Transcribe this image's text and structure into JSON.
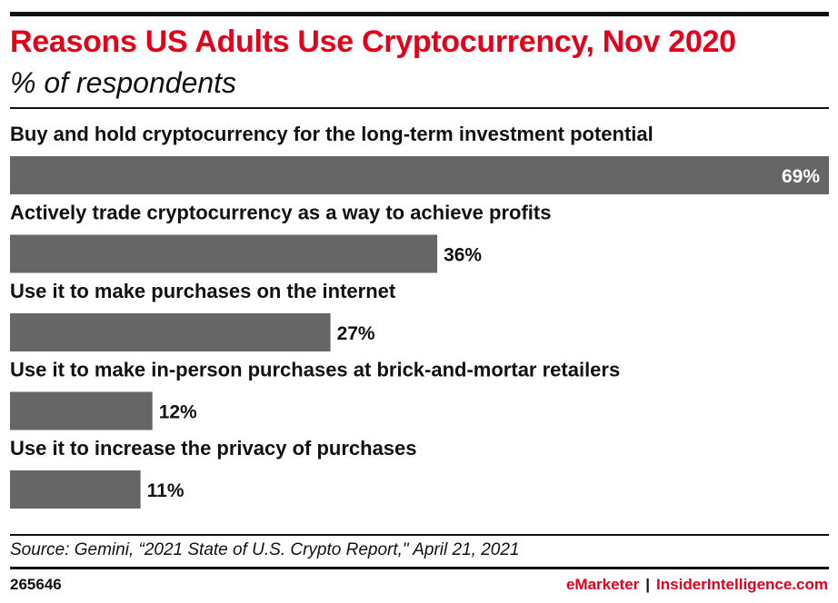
{
  "colors": {
    "title": "#e3001b",
    "bar": "#666666",
    "text": "#111111",
    "inside_label": "#ffffff",
    "brand": "#e3001b"
  },
  "header": {
    "title": "Reasons US Adults Use Cryptocurrency, Nov 2020",
    "subtitle": "% of respondents"
  },
  "chart_data": {
    "type": "bar",
    "orientation": "horizontal",
    "title": "Reasons US Adults Use Cryptocurrency, Nov 2020",
    "subtitle": "% of respondents",
    "categories": [
      "Buy and hold cryptocurrency for the long-term investment potential",
      "Actively trade cryptocurrency as a way to achieve profits",
      "Use it to make purchases on the internet",
      "Use it to make in-person purchases at brick-and-mortar retailers",
      "Use it to increase the privacy of purchases"
    ],
    "values": [
      69,
      36,
      27,
      12,
      11
    ],
    "value_labels": [
      "69%",
      "36%",
      "27%",
      "12%",
      "11%"
    ],
    "unit": "%",
    "xlim": [
      0,
      69
    ],
    "grid": false,
    "legend": "none"
  },
  "footer": {
    "source": "Source: Gemini, “2021 State of U.S. Crypto Report,\" April 21, 2021",
    "chart_id": "265646",
    "brand_emarketer": "eMarketer",
    "brand_separator": "|",
    "brand_insider": "InsiderIntelligence.com"
  }
}
